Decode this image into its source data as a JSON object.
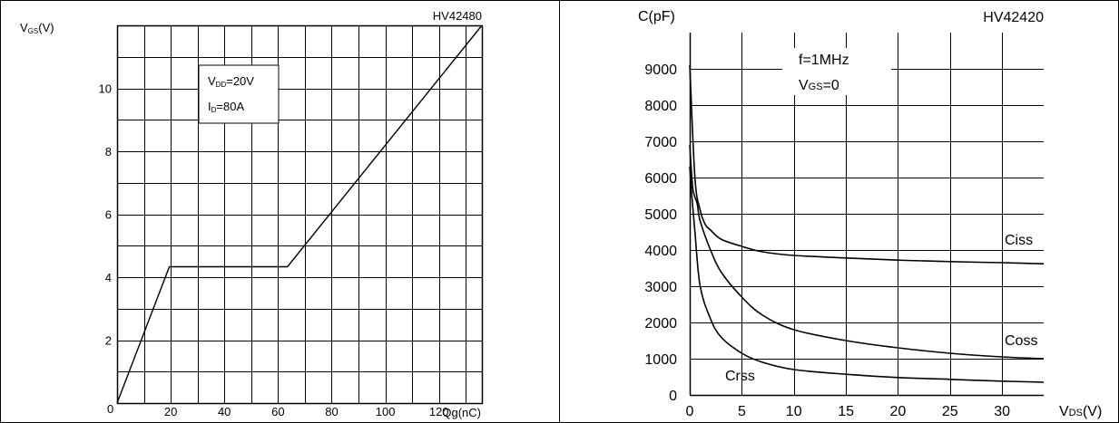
{
  "chart_data": [
    {
      "type": "line",
      "id": "HV42480",
      "corner_label": "HV42480",
      "y_axis_label": {
        "main": "V",
        "sub": "GS",
        "unit": "(V)"
      },
      "x_axis_label": "Qg(nC)",
      "x_ticks": [
        "0",
        "20",
        "40",
        "60",
        "80",
        "100",
        "120"
      ],
      "y_ticks": [
        "0",
        "2",
        "4",
        "6",
        "8",
        "10"
      ],
      "xlim": [
        0,
        136
      ],
      "ylim": [
        0,
        12
      ],
      "grid": true,
      "annotation": [
        {
          "main": "V",
          "sub": "DD",
          "rest": "=20V"
        },
        {
          "main": "I",
          "sub": "D",
          "rest": "=80A"
        }
      ],
      "series": [
        {
          "x": [
            0,
            19.5,
            63.5,
            136
          ],
          "y": [
            0,
            4.33,
            4.33,
            12
          ]
        }
      ]
    },
    {
      "type": "line",
      "id": "HV42420",
      "corner_label": "HV42420",
      "y_axis_label": "C(pF)",
      "x_axis_label": {
        "main": "V",
        "sub": "DS",
        "unit": "(V)"
      },
      "x_ticks": [
        "0",
        "5",
        "10",
        "15",
        "20",
        "25",
        "30"
      ],
      "y_ticks": [
        "0",
        "1000",
        "2000",
        "3000",
        "4000",
        "5000",
        "6000",
        "7000",
        "8000",
        "9000"
      ],
      "xlim": [
        0,
        34
      ],
      "ylim": [
        0,
        10000
      ],
      "grid": true,
      "annotation": [
        {
          "text": "f=1MHz"
        },
        {
          "main": "V",
          "sub": "GS",
          "rest": "=0"
        }
      ],
      "series": [
        {
          "name": "Ciss",
          "x": [
            0,
            0.5,
            1,
            1.5,
            2,
            3,
            5,
            7,
            10,
            15,
            20,
            25,
            30,
            34
          ],
          "y": [
            9100,
            6000,
            5100,
            4700,
            4550,
            4300,
            4100,
            3950,
            3850,
            3780,
            3720,
            3680,
            3650,
            3620
          ]
        },
        {
          "name": "Coss",
          "x": [
            0,
            0.3,
            0.7,
            1,
            2,
            3,
            5,
            7,
            10,
            15,
            20,
            25,
            30,
            34
          ],
          "y": [
            6900,
            5700,
            5300,
            4800,
            4000,
            3400,
            2700,
            2200,
            1800,
            1500,
            1300,
            1150,
            1050,
            1000
          ]
        },
        {
          "name": "Crss",
          "x": [
            0,
            0.2,
            0.5,
            1,
            2,
            3,
            5,
            7,
            10,
            15,
            20,
            25,
            30,
            34
          ],
          "y": [
            6300,
            5500,
            4500,
            3000,
            2100,
            1600,
            1150,
            900,
            700,
            570,
            480,
            430,
            380,
            350
          ]
        }
      ]
    }
  ]
}
